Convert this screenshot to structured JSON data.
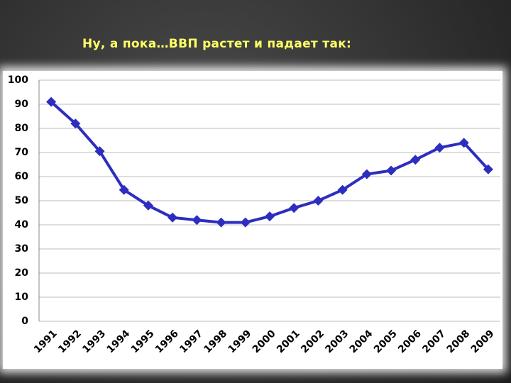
{
  "chart_data": {
    "type": "line",
    "title": "Ну, а пока…ВВП растет и падает так:",
    "categories": [
      "1991",
      "1992",
      "1993",
      "1994",
      "1995",
      "1996",
      "1997",
      "1998",
      "1999",
      "2000",
      "2001",
      "2002",
      "2003",
      "2004",
      "2005",
      "2006",
      "2007",
      "2008",
      "2009"
    ],
    "values": [
      91,
      82,
      70.5,
      54.5,
      48,
      43,
      42,
      41,
      41,
      43.5,
      47,
      50,
      54.5,
      61,
      62.5,
      67,
      72,
      74,
      63
    ],
    "color": "#2d2dbf",
    "ylim": [
      0,
      100
    ],
    "yticks": [
      0,
      10,
      20,
      30,
      40,
      50,
      60,
      70,
      80,
      90,
      100
    ],
    "grid": true
  }
}
